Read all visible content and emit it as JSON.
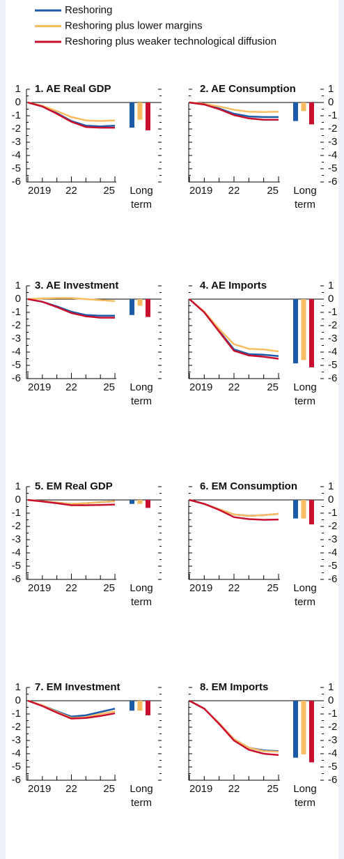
{
  "legend": [
    {
      "name": "Reshoring",
      "color": "#1c5ba8"
    },
    {
      "name": "Reshoring plus lower margins",
      "color": "#f8bd62"
    },
    {
      "name": "Reshoring plus weaker technological diffusion",
      "color": "#c8102e"
    }
  ],
  "chart_data": [
    {
      "type": "line",
      "title": "1. AE Real GDP",
      "x": [
        2019,
        2020,
        2021,
        2022,
        2023,
        2024,
        2025
      ],
      "xlim": [
        2019,
        2025
      ],
      "xticks": [
        2019,
        {
          "value": 2022,
          "label": "22"
        },
        {
          "value": 2025,
          "label": "25"
        }
      ],
      "ylim": [
        -6,
        1
      ],
      "yticks": [
        -6,
        -5,
        -4,
        -3,
        -2,
        -1,
        0,
        1
      ],
      "long_term_label": "Long term",
      "series": [
        {
          "values": [
            0,
            -0.3,
            -0.8,
            -1.4,
            -1.75,
            -1.8,
            -1.75
          ],
          "long_term": -1.9
        },
        {
          "values": [
            0,
            -0.25,
            -0.65,
            -1.1,
            -1.35,
            -1.4,
            -1.35
          ],
          "long_term": -1.3
        },
        {
          "values": [
            0,
            -0.3,
            -0.85,
            -1.45,
            -1.85,
            -1.9,
            -1.9
          ],
          "long_term": -2.1
        }
      ]
    },
    {
      "type": "line",
      "title": "2. AE Consumption",
      "x": [
        2019,
        2020,
        2021,
        2022,
        2023,
        2024,
        2025
      ],
      "xlim": [
        2019,
        2025
      ],
      "xticks": [
        2019,
        {
          "value": 2022,
          "label": "22"
        },
        {
          "value": 2025,
          "label": "25"
        }
      ],
      "ylim": [
        -6,
        1
      ],
      "yticks": [
        -6,
        -5,
        -4,
        -3,
        -2,
        -1,
        0,
        1
      ],
      "long_term_label": "Long term",
      "series": [
        {
          "values": [
            0,
            -0.15,
            -0.45,
            -0.85,
            -1.05,
            -1.1,
            -1.1
          ],
          "long_term": -1.4
        },
        {
          "values": [
            0,
            -0.1,
            -0.3,
            -0.55,
            -0.7,
            -0.72,
            -0.7
          ],
          "long_term": -0.65
        },
        {
          "values": [
            0,
            -0.15,
            -0.5,
            -0.95,
            -1.2,
            -1.3,
            -1.3
          ],
          "long_term": -1.65
        }
      ]
    },
    {
      "type": "line",
      "title": "3. AE Investment",
      "x": [
        2019,
        2020,
        2021,
        2022,
        2023,
        2024,
        2025
      ],
      "xlim": [
        2019,
        2025
      ],
      "xticks": [
        2019,
        {
          "value": 2022,
          "label": "22"
        },
        {
          "value": 2025,
          "label": "25"
        }
      ],
      "ylim": [
        -6,
        1
      ],
      "yticks": [
        -6,
        -5,
        -4,
        -3,
        -2,
        -1,
        0,
        1
      ],
      "long_term_label": "Long term",
      "series": [
        {
          "values": [
            0,
            -0.2,
            -0.55,
            -0.95,
            -1.2,
            -1.25,
            -1.25
          ],
          "long_term": -1.2
        },
        {
          "values": [
            0,
            0.05,
            0.08,
            0.08,
            0,
            -0.08,
            -0.15
          ],
          "long_term": -0.5
        },
        {
          "values": [
            0,
            -0.2,
            -0.6,
            -1.05,
            -1.3,
            -1.4,
            -1.4
          ],
          "long_term": -1.35
        }
      ]
    },
    {
      "type": "line",
      "title": "4. AE Imports",
      "x": [
        2019,
        2020,
        2021,
        2022,
        2023,
        2024,
        2025
      ],
      "xlim": [
        2019,
        2025
      ],
      "xticks": [
        2019,
        {
          "value": 2022,
          "label": "22"
        },
        {
          "value": 2025,
          "label": "25"
        }
      ],
      "ylim": [
        -6,
        1
      ],
      "yticks": [
        -6,
        -5,
        -4,
        -3,
        -2,
        -1,
        0,
        1
      ],
      "long_term_label": "Long term",
      "series": [
        {
          "values": [
            0,
            -1,
            -2.4,
            -3.8,
            -4.15,
            -4.2,
            -4.3
          ],
          "long_term": -4.85
        },
        {
          "values": [
            0,
            -0.95,
            -2.25,
            -3.4,
            -3.75,
            -3.8,
            -3.95
          ],
          "long_term": -4.6
        },
        {
          "values": [
            0,
            -1,
            -2.45,
            -3.9,
            -4.25,
            -4.35,
            -4.5
          ],
          "long_term": -5.15
        }
      ]
    },
    {
      "type": "line",
      "title": "5. EM Real GDP",
      "x": [
        2019,
        2020,
        2021,
        2022,
        2023,
        2024,
        2025
      ],
      "xlim": [
        2019,
        2025
      ],
      "xticks": [
        2019,
        {
          "value": 2022,
          "label": "22"
        },
        {
          "value": 2025,
          "label": "25"
        }
      ],
      "ylim": [
        -6,
        1
      ],
      "yticks": [
        -6,
        -5,
        -4,
        -3,
        -2,
        -1,
        0,
        1
      ],
      "long_term_label": "Long term",
      "series": [
        {
          "values": [
            0,
            -0.1,
            -0.2,
            -0.3,
            -0.25,
            -0.18,
            -0.1
          ],
          "long_term": -0.3
        },
        {
          "values": [
            0,
            -0.1,
            -0.2,
            -0.3,
            -0.25,
            -0.18,
            -0.1
          ],
          "long_term": -0.3
        },
        {
          "values": [
            0,
            -0.12,
            -0.25,
            -0.4,
            -0.4,
            -0.38,
            -0.35
          ],
          "long_term": -0.6
        }
      ]
    },
    {
      "type": "line",
      "title": "6. EM Consumption",
      "x": [
        2019,
        2020,
        2021,
        2022,
        2023,
        2024,
        2025
      ],
      "xlim": [
        2019,
        2025
      ],
      "xticks": [
        2019,
        {
          "value": 2022,
          "label": "22"
        },
        {
          "value": 2025,
          "label": "25"
        }
      ],
      "ylim": [
        -6,
        1
      ],
      "yticks": [
        -6,
        -5,
        -4,
        -3,
        -2,
        -1,
        0,
        1
      ],
      "long_term_label": "Long term",
      "series": [
        {
          "values": [
            0,
            -0.3,
            -0.7,
            -1.1,
            -1.2,
            -1.15,
            -1.05
          ],
          "long_term": -1.4
        },
        {
          "values": [
            0,
            -0.3,
            -0.7,
            -1.1,
            -1.2,
            -1.15,
            -1.05
          ],
          "long_term": -1.4
        },
        {
          "values": [
            0,
            -0.3,
            -0.75,
            -1.3,
            -1.45,
            -1.5,
            -1.48
          ],
          "long_term": -1.85
        }
      ]
    },
    {
      "type": "line",
      "title": "7. EM Investment",
      "x": [
        2019,
        2020,
        2021,
        2022,
        2023,
        2024,
        2025
      ],
      "xlim": [
        2019,
        2025
      ],
      "xticks": [
        2019,
        {
          "value": 2022,
          "label": "22"
        },
        {
          "value": 2025,
          "label": "25"
        }
      ],
      "ylim": [
        -6,
        1
      ],
      "yticks": [
        -6,
        -5,
        -4,
        -3,
        -2,
        -1,
        0,
        1
      ],
      "long_term_label": "Long term",
      "series": [
        {
          "values": [
            0,
            -0.35,
            -0.8,
            -1.2,
            -1.1,
            -0.85,
            -0.6
          ],
          "long_term": -0.75
        },
        {
          "values": [
            0,
            -0.35,
            -0.85,
            -1.3,
            -1.25,
            -1.0,
            -0.8
          ],
          "long_term": -0.75
        },
        {
          "values": [
            0,
            -0.4,
            -0.9,
            -1.35,
            -1.3,
            -1.15,
            -0.95
          ],
          "long_term": -1.1
        }
      ]
    },
    {
      "type": "line",
      "title": "8. EM Imports",
      "x": [
        2019,
        2020,
        2021,
        2022,
        2023,
        2024,
        2025
      ],
      "xlim": [
        2019,
        2025
      ],
      "xticks": [
        2019,
        {
          "value": 2022,
          "label": "22"
        },
        {
          "value": 2025,
          "label": "25"
        }
      ],
      "ylim": [
        -6,
        1
      ],
      "yticks": [
        -6,
        -5,
        -4,
        -3,
        -2,
        -1,
        0,
        1
      ],
      "long_term_label": "Long term",
      "series": [
        {
          "values": [
            0,
            -0.6,
            -1.7,
            -2.9,
            -3.55,
            -3.75,
            -3.8
          ],
          "long_term": -4.3
        },
        {
          "values": [
            0,
            -0.6,
            -1.7,
            -2.9,
            -3.55,
            -3.8,
            -3.85
          ],
          "long_term": -4.05
        },
        {
          "values": [
            0,
            -0.6,
            -1.75,
            -3.0,
            -3.7,
            -4.0,
            -4.1
          ],
          "long_term": -4.65
        }
      ]
    }
  ]
}
